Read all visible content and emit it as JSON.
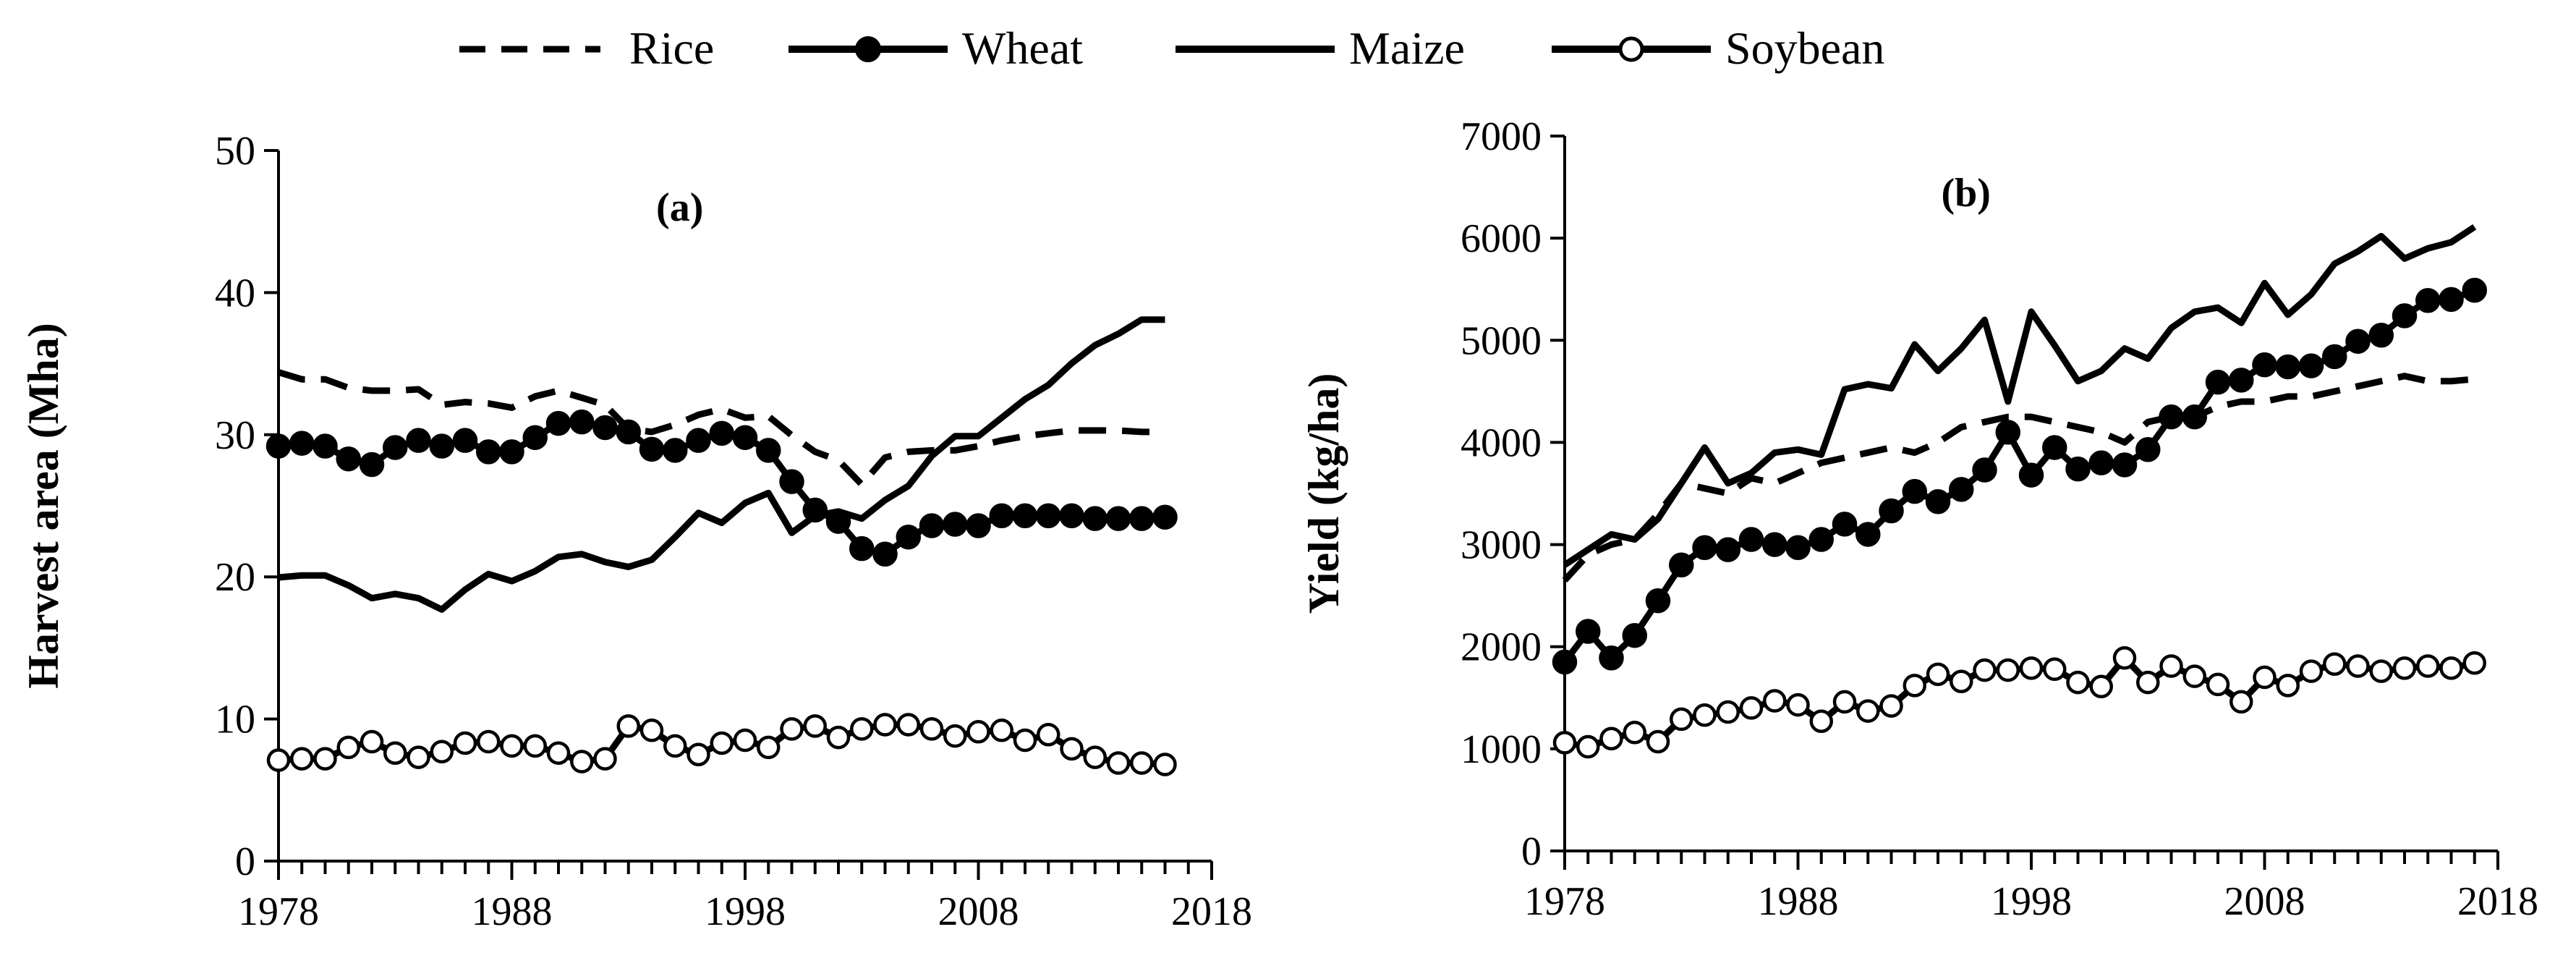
{
  "legend": [
    {
      "name": "Rice",
      "style": "dashed"
    },
    {
      "name": "Wheat",
      "style": "filled-marker"
    },
    {
      "name": "Maize",
      "style": "solid"
    },
    {
      "name": "Soybean",
      "style": "open-marker"
    }
  ],
  "colors": {
    "line": "#000000",
    "background": "#ffffff",
    "open_marker_fill": "#ffffff"
  },
  "chart_data": [
    {
      "type": "line",
      "panel_label": "(a)",
      "title": "",
      "xlabel": "",
      "ylabel": "Harvest area (Mha)",
      "xlim": [
        1978,
        2018
      ],
      "ylim": [
        0,
        50
      ],
      "xticks": [
        1978,
        1988,
        1998,
        2008,
        2018
      ],
      "yticks": [
        0,
        10,
        20,
        30,
        40,
        50
      ],
      "grid": false,
      "legend": "top",
      "x": [
        1978,
        1979,
        1980,
        1981,
        1982,
        1983,
        1984,
        1985,
        1986,
        1987,
        1988,
        1989,
        1990,
        1991,
        1992,
        1993,
        1994,
        1995,
        1996,
        1997,
        1998,
        1999,
        2000,
        2001,
        2002,
        2003,
        2004,
        2005,
        2006,
        2007,
        2008,
        2009,
        2010,
        2011,
        2012,
        2013,
        2014,
        2015,
        2016
      ],
      "series": [
        {
          "name": "Rice",
          "style": "dashed",
          "values": [
            34.4,
            33.9,
            33.9,
            33.3,
            33.1,
            33.1,
            33.2,
            32.1,
            32.3,
            32.2,
            31.9,
            32.7,
            33.1,
            32.6,
            32.1,
            30.4,
            30.2,
            30.7,
            31.4,
            31.8,
            31.2,
            31.3,
            29.96,
            28.8,
            28.2,
            26.5,
            28.4,
            28.8,
            28.9,
            28.9,
            29.2,
            29.6,
            29.9,
            30.1,
            30.3,
            30.3,
            30.3,
            30.2,
            30.2
          ]
        },
        {
          "name": "Wheat",
          "style": "filled-marker",
          "values": [
            29.2,
            29.4,
            29.2,
            28.3,
            27.9,
            29.1,
            29.6,
            29.2,
            29.6,
            28.8,
            28.8,
            29.8,
            30.8,
            30.9,
            30.5,
            30.2,
            28.98,
            28.9,
            29.6,
            30.1,
            29.8,
            28.9,
            26.7,
            24.7,
            23.9,
            21.99,
            21.6,
            22.8,
            23.6,
            23.7,
            23.6,
            24.3,
            24.3,
            24.3,
            24.3,
            24.1,
            24.1,
            24.1,
            24.2
          ]
        },
        {
          "name": "Maize",
          "style": "solid",
          "values": [
            19.96,
            20.1,
            20.1,
            19.4,
            18.5,
            18.8,
            18.5,
            17.7,
            19.1,
            20.2,
            19.7,
            20.4,
            21.4,
            21.6,
            21.04,
            20.7,
            21.2,
            22.8,
            24.5,
            23.8,
            25.2,
            25.9,
            23.1,
            24.3,
            24.6,
            24.1,
            25.4,
            26.4,
            28.5,
            29.9,
            29.9,
            31.2,
            32.5,
            33.5,
            35.03,
            36.3,
            37.1,
            38.1,
            38.1
          ]
        },
        {
          "name": "Soybean",
          "style": "open-marker",
          "values": [
            7.1,
            7.2,
            7.2,
            8.0,
            8.4,
            7.6,
            7.3,
            7.7,
            8.3,
            8.4,
            8.1,
            8.1,
            7.6,
            7.0,
            7.2,
            9.5,
            9.2,
            8.1,
            7.5,
            8.3,
            8.5,
            8.0,
            9.3,
            9.5,
            8.7,
            9.3,
            9.6,
            9.6,
            9.3,
            8.8,
            9.1,
            9.2,
            8.5,
            8.9,
            7.9,
            7.3,
            6.9,
            6.9,
            6.8
          ]
        }
      ]
    },
    {
      "type": "line",
      "panel_label": "(b)",
      "title": "",
      "xlabel": "",
      "ylabel": "Yield (kg/ha)",
      "xlim": [
        1978,
        2018
      ],
      "ylim": [
        0,
        7000
      ],
      "xticks": [
        1978,
        1988,
        1998,
        2008,
        2018
      ],
      "yticks": [
        0,
        1000,
        2000,
        3000,
        4000,
        5000,
        6000,
        7000
      ],
      "grid": false,
      "legend": "top",
      "x": [
        1978,
        1979,
        1980,
        1981,
        1982,
        1983,
        1984,
        1985,
        1986,
        1987,
        1988,
        1989,
        1990,
        1991,
        1992,
        1993,
        1994,
        1995,
        1996,
        1997,
        1998,
        1999,
        2000,
        2001,
        2002,
        2003,
        2004,
        2005,
        2006,
        2007,
        2008,
        2009,
        2010,
        2011,
        2012,
        2013,
        2014,
        2015,
        2016,
        2017
      ],
      "series": [
        {
          "name": "Rice",
          "style": "dashed",
          "values": [
            2650,
            2900,
            3000,
            3050,
            3300,
            3600,
            3550,
            3500,
            3650,
            3600,
            3700,
            3800,
            3850,
            3900,
            3950,
            3900,
            4000,
            4150,
            4200,
            4250,
            4250,
            4200,
            4150,
            4100,
            4000,
            4200,
            4250,
            4250,
            4350,
            4400,
            4400,
            4450,
            4450,
            4500,
            4550,
            4600,
            4650,
            4600,
            4600,
            4620
          ]
        },
        {
          "name": "Wheat",
          "style": "filled-marker",
          "values": [
            1850,
            2150,
            1890,
            2110,
            2450,
            2800,
            2970,
            2950,
            3050,
            3000,
            2970,
            3050,
            3200,
            3100,
            3330,
            3520,
            3420,
            3540,
            3730,
            4100,
            3680,
            3950,
            3740,
            3800,
            3780,
            3930,
            4250,
            4250,
            4590,
            4610,
            4760,
            4740,
            4750,
            4840,
            4990,
            5050,
            5240,
            5390,
            5400,
            5490
          ]
        },
        {
          "name": "Maize",
          "style": "solid",
          "values": [
            2800,
            2950,
            3100,
            3050,
            3250,
            3600,
            3950,
            3600,
            3700,
            3900,
            3930,
            3880,
            4520,
            4570,
            4530,
            4960,
            4700,
            4920,
            5200,
            4400,
            5280,
            4950,
            4600,
            4700,
            4920,
            4820,
            5120,
            5280,
            5320,
            5170,
            5560,
            5250,
            5450,
            5750,
            5870,
            6020,
            5800,
            5900,
            5960,
            6110
          ]
        },
        {
          "name": "Soybean",
          "style": "open-marker",
          "values": [
            1060,
            1020,
            1100,
            1160,
            1070,
            1290,
            1330,
            1360,
            1400,
            1470,
            1430,
            1270,
            1460,
            1370,
            1420,
            1620,
            1730,
            1660,
            1770,
            1770,
            1790,
            1780,
            1650,
            1610,
            1890,
            1650,
            1810,
            1710,
            1630,
            1460,
            1700,
            1620,
            1760,
            1830,
            1810,
            1760,
            1790,
            1810,
            1790,
            1840
          ]
        }
      ]
    }
  ]
}
